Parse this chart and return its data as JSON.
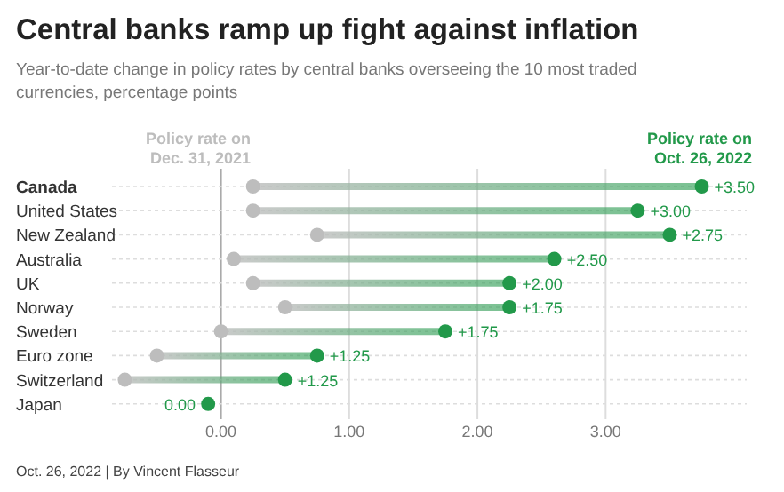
{
  "chart_data": {
    "type": "scatter",
    "orientation": "horizontal",
    "title": "Central banks ramp up fight against inflation",
    "subtitle": "Year-to-date change in policy rates by central banks overseeing the 10 most traded currencies, percentage points",
    "categories": [
      "Canada",
      "United States",
      "New Zealand",
      "Australia",
      "UK",
      "Norway",
      "Sweden",
      "Euro zone",
      "Switzerland",
      "Japan"
    ],
    "series": [
      {
        "name": "Policy rate on Dec. 31, 2021",
        "color": "#bdbdbd",
        "values": [
          0.25,
          0.25,
          0.75,
          0.1,
          0.25,
          0.5,
          0,
          -0.5,
          -0.75,
          null
        ]
      },
      {
        "name": "Policy rate on Oct. 26, 2022",
        "color": "#22994a",
        "values": [
          3.75,
          3.25,
          3.5,
          2.6,
          2.25,
          2.25,
          1.75,
          0.75,
          0.5,
          -0.1
        ]
      }
    ],
    "xlim": [
      -0.85,
      4.1
    ],
    "xticks": [
      {
        "value": 0,
        "label": "0.00"
      },
      {
        "value": 1,
        "label": "1.00"
      },
      {
        "value": 2,
        "label": "2.00"
      },
      {
        "value": 3,
        "label": "3.00"
      }
    ],
    "grid": true,
    "legend": "top",
    "marker": "circle",
    "annotations": [
      {
        "text": "+3.50",
        "x": 3.75,
        "y": "Canada"
      },
      {
        "text": "+3.00",
        "x": 3.25,
        "y": "United States"
      },
      {
        "text": "+2.75",
        "x": 3.5,
        "y": "New Zealand"
      },
      {
        "text": "+2.50",
        "x": 2.6,
        "y": "Australia"
      },
      {
        "text": "+2.00",
        "x": 2.25,
        "y": "UK"
      },
      {
        "text": "+1.75",
        "x": 2.25,
        "y": "Norway"
      },
      {
        "text": "+1.75",
        "x": 1.75,
        "y": "Sweden"
      },
      {
        "text": "+1.25",
        "x": 0.75,
        "y": "Euro zone"
      },
      {
        "text": "+1.25",
        "x": 0.5,
        "y": "Switzerland"
      },
      {
        "text": "0.00",
        "x": -0.1,
        "y": "Japan"
      },
      "Oct. 26, 2022 | By Vincent Flasseur"
    ]
  }
}
